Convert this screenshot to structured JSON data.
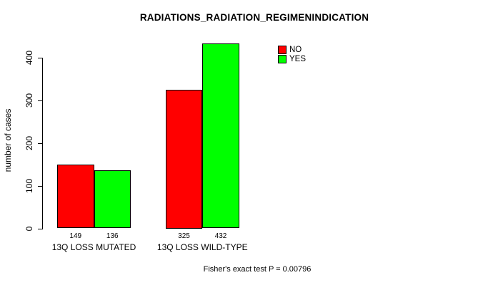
{
  "title": "RADIATIONS_RADIATION_REGIMENINDICATION",
  "ylabel": "number of cases",
  "footer": "Fisher's exact test P = 0.00796",
  "legend": [
    {
      "label": "NO",
      "color": "#ff0000"
    },
    {
      "label": "YES",
      "color": "#00ff00"
    }
  ],
  "chart_data": {
    "type": "bar",
    "title": "RADIATIONS_RADIATION_REGIMENINDICATION",
    "ylabel": "number of cases",
    "xlabel": "",
    "categories": [
      "13Q LOSS MUTATED",
      "13Q LOSS WILD-TYPE"
    ],
    "series": [
      {
        "name": "NO",
        "color": "#ff0000",
        "values": [
          149,
          325
        ]
      },
      {
        "name": "YES",
        "color": "#00ff00",
        "values": [
          136,
          432
        ]
      }
    ],
    "bar_value_labels": [
      [
        149,
        136
      ],
      [
        325,
        432
      ]
    ],
    "yticks": [
      0,
      100,
      200,
      300,
      400
    ],
    "ylim": [
      0,
      400
    ],
    "grid": false,
    "legend_position": "top-right",
    "annotation": "Fisher's exact test P = 0.00796",
    "bar_border_color": "#000000",
    "axis_color": "#000000"
  }
}
